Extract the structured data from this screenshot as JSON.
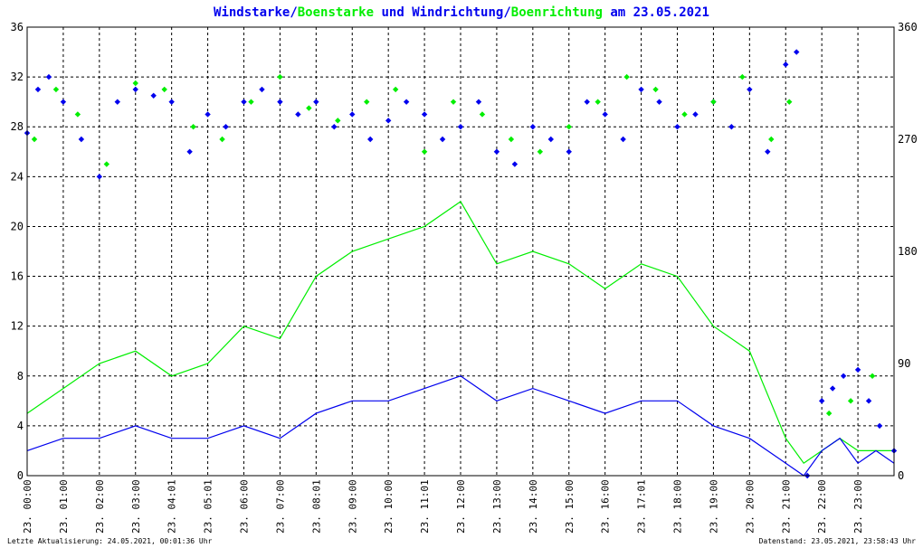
{
  "title": {
    "part1": "Windstarke",
    "sep1": "/",
    "part2": "Boenstarke",
    "part3": " und ",
    "part4": "Windrichtung",
    "sep2": "/",
    "part5": "Boenrichtung",
    "part6": " am 23.05.2021"
  },
  "footer": {
    "left": "Letzte Aktualisierung: 24.05.2021, 00:01:36 Uhr",
    "right": "Datenstand: 23.05.2021, 23:58:43 Uhr"
  },
  "colors": {
    "wind": "#0000ee",
    "gust": "#00ee00",
    "grid": "#000000",
    "text": "#000000"
  },
  "chart_data": {
    "type": "line",
    "grid": true,
    "x_unit": "hour of day",
    "xlim": [
      0,
      24
    ],
    "x_tick_labels": [
      "23. 00:00",
      "23. 01:00",
      "23. 02:00",
      "23. 03:00",
      "23. 04:01",
      "23. 05:01",
      "23. 06:00",
      "23. 07:00",
      "23. 08:01",
      "23. 09:00",
      "23. 10:00",
      "23. 11:01",
      "23. 12:00",
      "23. 13:00",
      "23. 14:00",
      "23. 15:00",
      "23. 16:00",
      "23. 17:01",
      "23. 18:00",
      "23. 19:00",
      "23. 20:00",
      "23. 21:00",
      "23. 22:00",
      "23. 23:00"
    ],
    "y_left": {
      "ylim": [
        0,
        36
      ],
      "ticks": [
        0,
        4,
        8,
        12,
        16,
        20,
        24,
        28,
        32,
        36
      ]
    },
    "y_right": {
      "ylim": [
        0,
        360
      ],
      "ticks": [
        0,
        90,
        180,
        270,
        360
      ]
    },
    "series": [
      {
        "name": "Windstarke",
        "kind": "line",
        "axis": "left",
        "color": "#0000ee",
        "x": [
          0,
          1,
          2,
          3,
          4,
          5,
          6,
          7,
          8,
          9,
          10,
          11,
          12,
          13,
          14,
          15,
          16,
          17,
          18,
          19,
          20,
          21,
          21.5,
          22,
          22.5,
          23,
          23.5,
          24
        ],
        "y": [
          2,
          3,
          3,
          4,
          3,
          3,
          4,
          3,
          5,
          6,
          6,
          7,
          8,
          6,
          7,
          6,
          5,
          6,
          6,
          4,
          3,
          1,
          0,
          2,
          3,
          1,
          2,
          1
        ]
      },
      {
        "name": "Boenstarke",
        "kind": "line",
        "axis": "left",
        "color": "#00ee00",
        "x": [
          0,
          1,
          2,
          3,
          4,
          5,
          6,
          7,
          8,
          9,
          10,
          11,
          12,
          13,
          14,
          15,
          16,
          17,
          18,
          19,
          20,
          21,
          21.5,
          22,
          22.5,
          23,
          23.5,
          24
        ],
        "y": [
          5,
          7,
          9,
          10,
          8,
          9,
          12,
          11,
          16,
          18,
          19,
          20,
          22,
          17,
          18,
          17,
          15,
          17,
          16,
          12,
          10,
          3,
          1,
          2,
          3,
          2,
          2,
          2
        ]
      },
      {
        "name": "Windrichtung",
        "kind": "scatter",
        "axis": "right",
        "color": "#0000ee",
        "x": [
          0,
          0.3,
          0.6,
          1,
          1.5,
          2,
          2.5,
          3,
          3.5,
          4,
          4.5,
          5,
          5.5,
          6,
          6.5,
          7,
          7.5,
          8,
          8.5,
          9,
          9.5,
          10,
          10.5,
          11,
          11.5,
          12,
          12.5,
          13,
          13.5,
          14,
          14.5,
          15,
          15.5,
          16,
          16.5,
          17,
          17.5,
          18,
          18.5,
          19,
          19.5,
          20,
          20.5,
          21,
          21.3,
          21.6,
          22,
          22.3,
          22.6,
          23,
          23.3,
          23.6,
          24
        ],
        "y": [
          275,
          310,
          320,
          300,
          270,
          240,
          300,
          310,
          305,
          300,
          260,
          290,
          280,
          300,
          310,
          300,
          290,
          300,
          280,
          290,
          270,
          285,
          300,
          290,
          270,
          280,
          300,
          260,
          250,
          280,
          270,
          260,
          300,
          290,
          270,
          310,
          300,
          280,
          290,
          300,
          280,
          310,
          260,
          330,
          340,
          0,
          60,
          70,
          80,
          85,
          60,
          40,
          20
        ]
      },
      {
        "name": "Boenrichtung",
        "kind": "scatter",
        "axis": "right",
        "color": "#00ee00",
        "x": [
          0.2,
          0.8,
          1.4,
          2.2,
          3,
          3.8,
          4.6,
          5.4,
          6.2,
          7,
          7.8,
          8.6,
          9.4,
          10.2,
          11,
          11.8,
          12.6,
          13.4,
          14.2,
          15,
          15.8,
          16.6,
          17.4,
          18.2,
          19,
          19.8,
          20.6,
          21.1,
          22.2,
          22.8,
          23.4
        ],
        "y": [
          270,
          310,
          290,
          250,
          315,
          310,
          280,
          270,
          300,
          320,
          295,
          285,
          300,
          310,
          260,
          300,
          290,
          270,
          260,
          280,
          300,
          320,
          310,
          290,
          300,
          320,
          270,
          300,
          50,
          60,
          80
        ]
      }
    ]
  }
}
